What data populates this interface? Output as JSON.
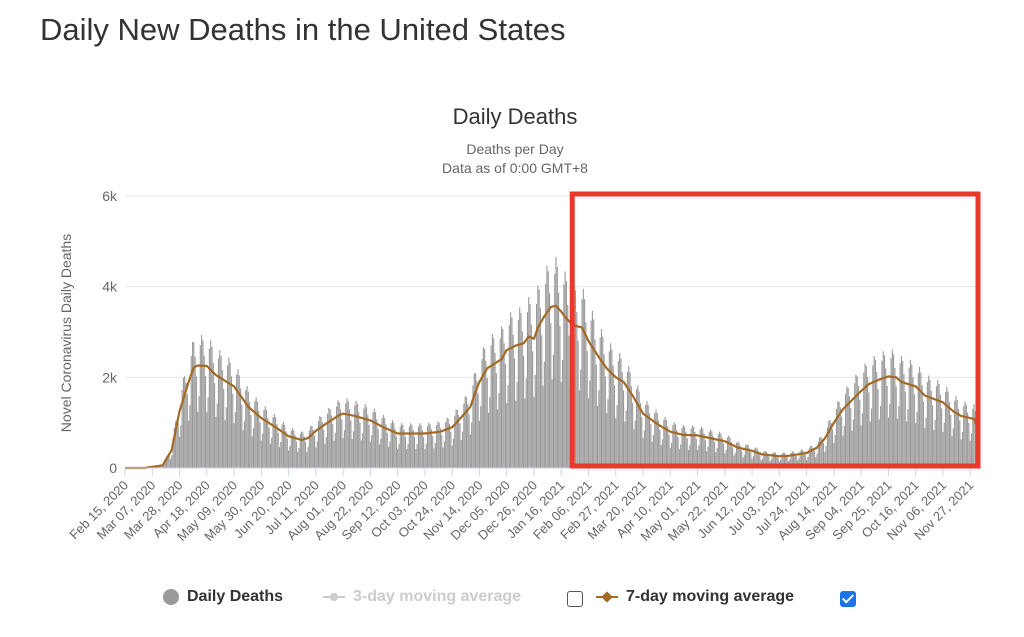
{
  "page": {
    "title": "Daily New Deaths in the United States"
  },
  "chart_data": {
    "type": "bar",
    "title": "Daily Deaths",
    "subtitle": "Deaths per Day",
    "subtitle2": "Data as of 0:00 GMT+8",
    "xlabel": "",
    "ylabel": "Novel Coronavirus Daily Deaths",
    "ylim": [
      0,
      6000
    ],
    "y_ticks": [
      0,
      2000,
      4000,
      6000
    ],
    "y_tick_labels": [
      "0",
      "2k",
      "4k",
      "6k"
    ],
    "x_range": [
      "2020-02-15",
      "2021-12-03"
    ],
    "x_tick_labels": [
      "Feb 15, 2020",
      "Mar 07, 2020",
      "Mar 28, 2020",
      "Apr 18, 2020",
      "May 09, 2020",
      "May 30, 2020",
      "Jun 20, 2020",
      "Jul 11, 2020",
      "Aug 01, 2020",
      "Aug 22, 2020",
      "Sep 12, 2020",
      "Oct 03, 2020",
      "Oct 24, 2020",
      "Nov 14, 2020",
      "Dec 05, 2020",
      "Dec 26, 2020",
      "Jan 16, 2021",
      "Feb 06, 2021",
      "Feb 27, 2021",
      "Mar 20, 2021",
      "Apr 10, 2021",
      "May 01, 2021",
      "May 22, 2021",
      "Jun 12, 2021",
      "Jul 03, 2021",
      "Jul 24, 2021",
      "Aug 14, 2021",
      "Sep 04, 2021",
      "Sep 25, 2021",
      "Oct 16, 2021",
      "Nov 06, 2021",
      "Nov 27, 2021"
    ],
    "grid": true,
    "legend_position": "bottom",
    "colors": {
      "bars": "#999999",
      "avg7": "#a36a26",
      "highlight": "#e8392a",
      "legend_off": "#cccccc",
      "checkbox_on": "#1a73e8"
    },
    "highlight_box": {
      "x_start": "2021-01-26",
      "x_end": "2021-12-03",
      "y_start": 0,
      "y_end": 6000
    },
    "series": [
      {
        "name": "7-day moving average",
        "type": "line",
        "x": [
          "2020-02-15",
          "2020-03-01",
          "2020-03-15",
          "2020-03-22",
          "2020-03-28",
          "2020-04-04",
          "2020-04-08",
          "2020-04-11",
          "2020-04-18",
          "2020-04-25",
          "2020-05-09",
          "2020-05-20",
          "2020-05-30",
          "2020-06-10",
          "2020-06-20",
          "2020-06-30",
          "2020-07-05",
          "2020-07-11",
          "2020-07-20",
          "2020-07-28",
          "2020-08-01",
          "2020-08-10",
          "2020-08-22",
          "2020-09-01",
          "2020-09-12",
          "2020-09-20",
          "2020-10-03",
          "2020-10-15",
          "2020-10-24",
          "2020-11-01",
          "2020-11-07",
          "2020-11-10",
          "2020-11-14",
          "2020-11-20",
          "2020-12-01",
          "2020-12-05",
          "2020-12-12",
          "2020-12-18",
          "2020-12-22",
          "2020-12-26",
          "2020-12-29",
          "2021-01-03",
          "2021-01-08",
          "2021-01-12",
          "2021-01-16",
          "2021-01-20",
          "2021-01-25",
          "2021-02-01",
          "2021-02-06",
          "2021-02-15",
          "2021-02-20",
          "2021-02-27",
          "2021-03-05",
          "2021-03-12",
          "2021-03-20",
          "2021-04-01",
          "2021-04-10",
          "2021-04-20",
          "2021-05-01",
          "2021-05-12",
          "2021-05-22",
          "2021-06-01",
          "2021-06-12",
          "2021-06-20",
          "2021-07-03",
          "2021-07-10",
          "2021-07-17",
          "2021-07-24",
          "2021-08-01",
          "2021-08-07",
          "2021-08-14",
          "2021-08-21",
          "2021-09-04",
          "2021-09-10",
          "2021-09-18",
          "2021-09-25",
          "2021-10-01",
          "2021-10-05",
          "2021-10-16",
          "2021-10-23",
          "2021-11-06",
          "2021-11-14",
          "2021-11-20",
          "2021-11-27",
          "2021-11-30",
          "2021-12-03"
        ],
        "values": [
          0,
          0,
          60,
          400,
          1250,
          1900,
          2220,
          2260,
          2250,
          2050,
          1800,
          1350,
          1100,
          900,
          700,
          620,
          660,
          820,
          1000,
          1150,
          1200,
          1150,
          1050,
          900,
          760,
          760,
          760,
          800,
          900,
          1150,
          1350,
          1600,
          1900,
          2200,
          2400,
          2600,
          2700,
          2750,
          2900,
          2850,
          3100,
          3350,
          3550,
          3580,
          3450,
          3300,
          3150,
          3100,
          2800,
          2400,
          2200,
          2000,
          1900,
          1600,
          1200,
          950,
          800,
          730,
          720,
          650,
          590,
          450,
          380,
          300,
          260,
          270,
          300,
          330,
          450,
          650,
          1000,
          1300,
          1700,
          1850,
          1950,
          2020,
          2000,
          1900,
          1800,
          1600,
          1450,
          1250,
          1150,
          1100,
          1080,
          850
        ]
      },
      {
        "name": "3-day moving average",
        "visible": false
      },
      {
        "name": "Daily Deaths",
        "type": "bar",
        "note_envelope_max": [
          0,
          0,
          100,
          600,
          1900,
          2700,
          2600,
          2500,
          2200,
          1700,
          1400,
          1200,
          1000,
          800,
          750,
          850,
          1100,
          1350,
          1400,
          1350,
          1300,
          1150,
          950,
          900,
          950,
          1000,
          1250,
          1700,
          2000,
          2400,
          3000,
          3500,
          4100,
          4300,
          4400,
          3800,
          3300,
          2800,
          2500,
          2100,
          1700,
          1200,
          1000,
          900,
          900,
          750,
          650,
          500,
          450,
          400,
          700,
          1100,
          1600,
          2100,
          2550,
          2600,
          2500,
          2300,
          2000,
          1800,
          1700,
          1500,
          1400
        ]
      }
    ]
  },
  "legend": {
    "daily": "Daily Deaths",
    "avg3": "3-day moving average",
    "avg7": "7-day moving average"
  }
}
